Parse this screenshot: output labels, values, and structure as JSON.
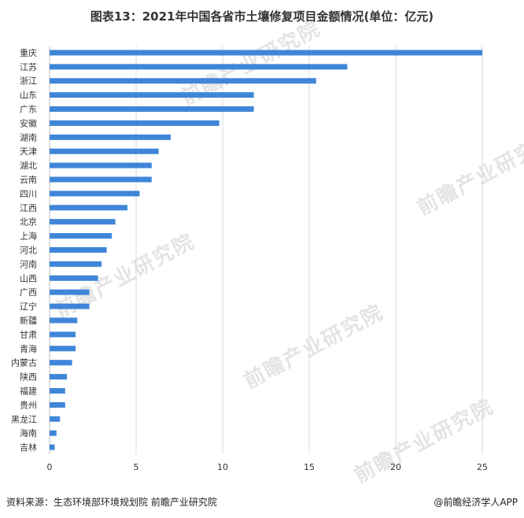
{
  "chart_data": {
    "type": "bar",
    "orientation": "horizontal",
    "title": "图表13：2021年中国各省市土壤修复项目金额情况(单位：亿元)",
    "categories": [
      "重庆",
      "江苏",
      "浙江",
      "山东",
      "广东",
      "安徽",
      "湖南",
      "天津",
      "湖北",
      "云南",
      "四川",
      "江西",
      "北京",
      "上海",
      "河北",
      "河南",
      "山西",
      "广西",
      "辽宁",
      "新疆",
      "甘肃",
      "青海",
      "内蒙古",
      "陕西",
      "福建",
      "贵州",
      "黑龙江",
      "海南",
      "吉林"
    ],
    "values": [
      25,
      17.2,
      15.4,
      11.8,
      11.8,
      9.8,
      7.0,
      6.3,
      5.9,
      5.9,
      5.2,
      4.5,
      3.8,
      3.6,
      3.3,
      3.0,
      2.8,
      2.3,
      2.3,
      1.6,
      1.5,
      1.5,
      1.3,
      1.0,
      0.9,
      0.9,
      0.6,
      0.4,
      0.3
    ],
    "xlim": [
      0,
      25
    ],
    "xticks": [
      0,
      5,
      10,
      15,
      20,
      25
    ],
    "grid": true,
    "bar_color": "#3f86d9"
  },
  "watermark": "前瞻产业研究院",
  "footer": {
    "source": "资料来源：生态环境部环境规划院 前瞻产业研究院",
    "brand": "@前瞻经济学人APP"
  }
}
